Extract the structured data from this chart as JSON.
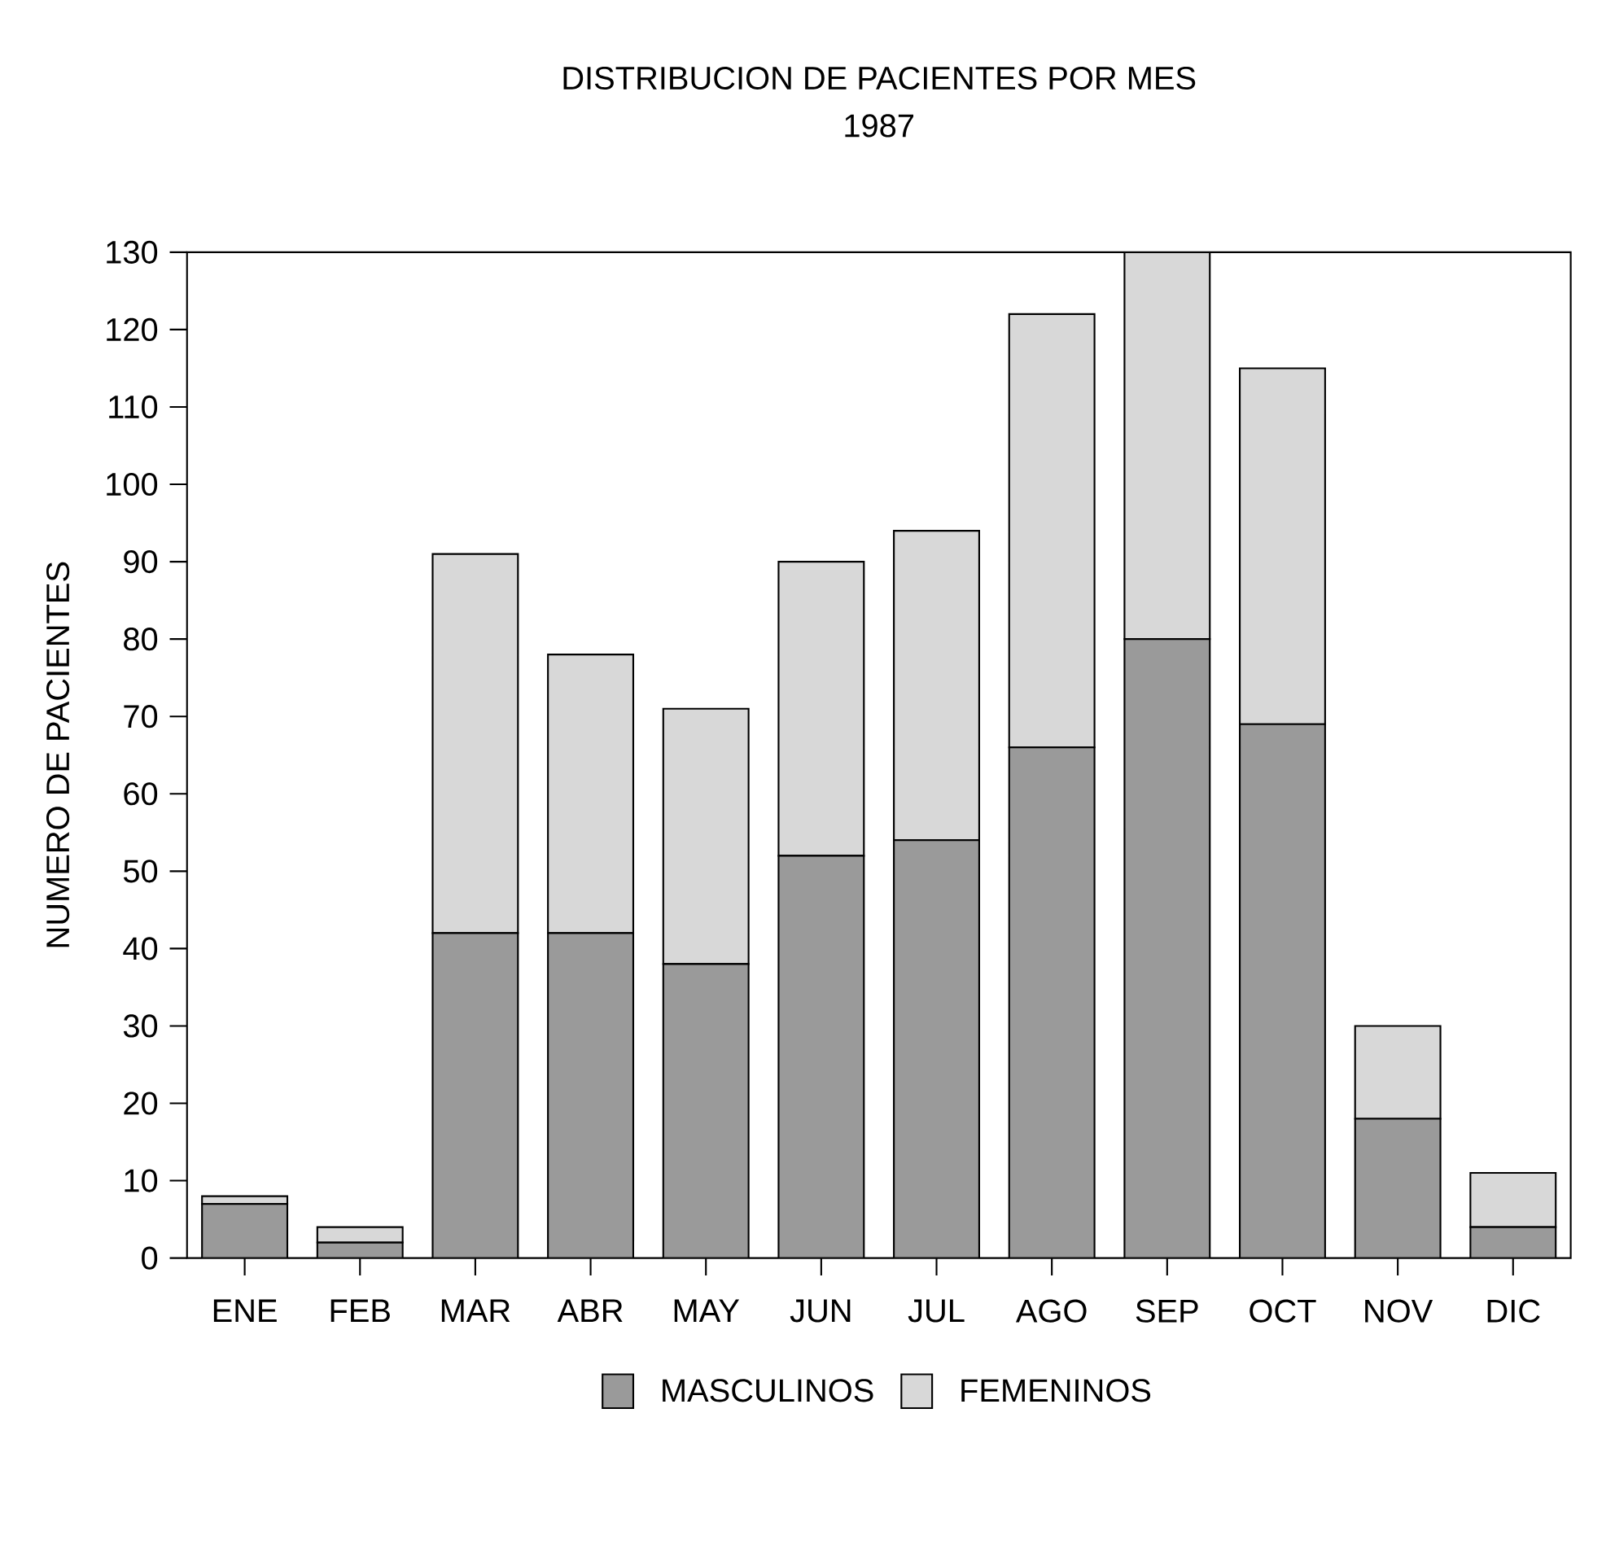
{
  "chart_data": {
    "type": "bar",
    "title": "DISTRIBUCION DE PACIENTES POR MES",
    "subtitle": "1987",
    "ylabel": "NUMERO DE PACIENTES",
    "categories": [
      "ENE",
      "FEB",
      "MAR",
      "ABR",
      "MAY",
      "JUN",
      "JUL",
      "AGO",
      "SEP",
      "OCT",
      "NOV",
      "DIC"
    ],
    "stacked": true,
    "series": [
      {
        "name": "MASCULINOS",
        "color": "#9a9a9a",
        "values": [
          7,
          2,
          42,
          42,
          38,
          52,
          54,
          66,
          80,
          69,
          18,
          4
        ]
      },
      {
        "name": "FEMENINOS",
        "color": "#d8d8d8",
        "values": [
          1,
          2,
          49,
          36,
          33,
          38,
          40,
          56,
          50,
          46,
          12,
          7
        ]
      }
    ],
    "ylim": [
      0,
      130
    ],
    "yticks": [
      0,
      10,
      20,
      30,
      40,
      50,
      60,
      70,
      80,
      90,
      100,
      110,
      120,
      130
    ],
    "legend": "bottom",
    "grid": false
  }
}
